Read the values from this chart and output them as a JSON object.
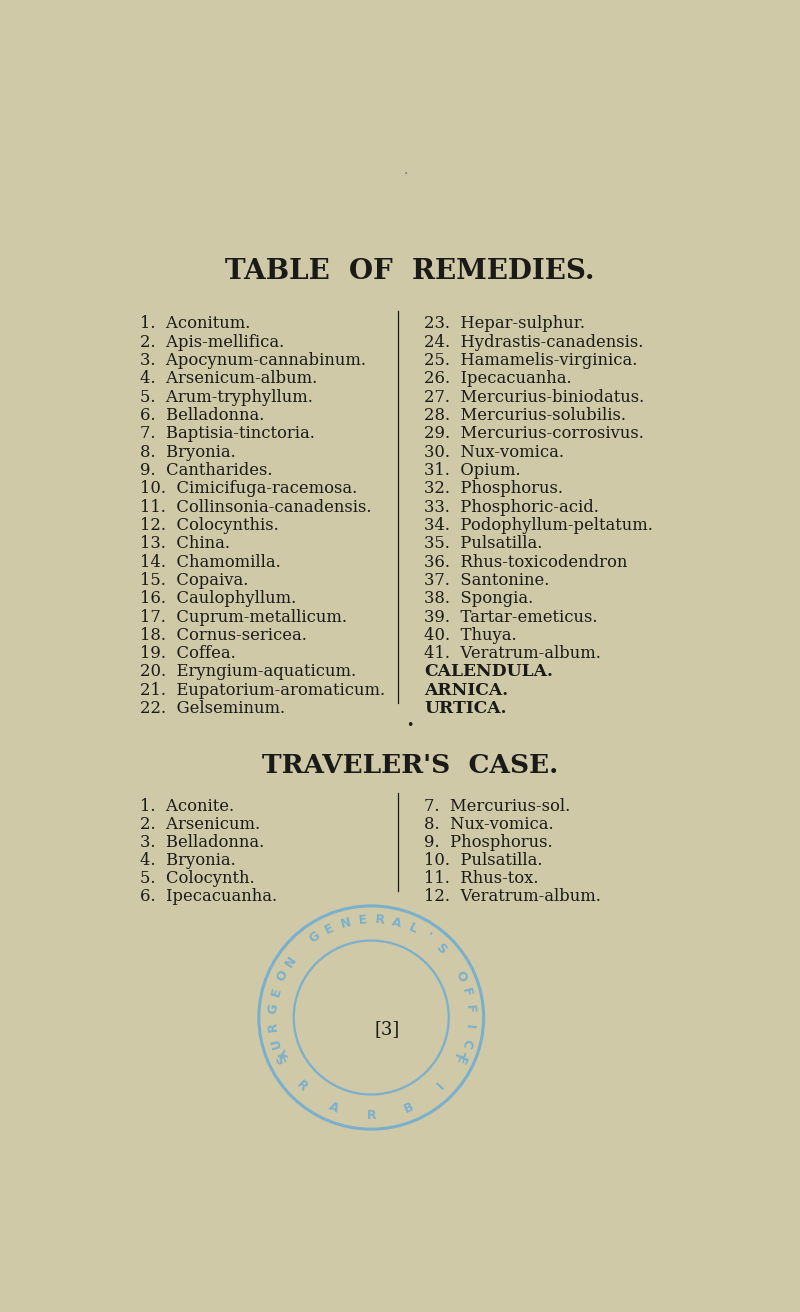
{
  "bg_color": "#cfc9a8",
  "text_color": "#1a1a18",
  "left_col": [
    "1.  Aconitum.",
    "2.  Apis-mellifica.",
    "3.  Apocynum-cannabinum.",
    "4.  Arsenicum-album.",
    "5.  Arum-tryphyllum.",
    "6.  Belladonna.",
    "7.  Baptisia-tinctoria.",
    "8.  Bryonia.",
    "9.  Cantharides.",
    "10.  Cimicifuga-racemosa.",
    "11.  Collinsonia-canadensis.",
    "12.  Colocynthis.",
    "13.  China.",
    "14.  Chamomilla.",
    "15.  Copaiva.",
    "16.  Caulophyllum.",
    "17.  Cuprum-metallicum.",
    "18.  Cornus-sericea.",
    "19.  Coffea.",
    "20.  Eryngium-aquaticum.",
    "21.  Eupatorium-aromaticum.",
    "22.  Gelseminum."
  ],
  "right_col": [
    "23.  Hepar-sulphur.",
    "24.  Hydrastis-canadensis.",
    "25.  Hamamelis-virginica.",
    "26.  Ipecacuanha.",
    "27.  Mercurius-biniodatus.",
    "28.  Mercurius-solubilis.",
    "29.  Mercurius-corrosivus.",
    "30.  Nux-vomica.",
    "31.  Opium.",
    "32.  Phosphorus.",
    "33.  Phosphoric-acid.",
    "34.  Podophyllum-peltatum.",
    "35.  Pulsatilla.",
    "36.  Rhus-toxicodendron",
    "37.  Santonine.",
    "38.  Spongia.",
    "39.  Tartar-emeticus.",
    "40.  Thuya.",
    "41.  Veratrum-album.",
    "CALENDULA.",
    "ARNICA.",
    "URTICA."
  ],
  "tc_left": [
    "1.  Aconite.",
    "2.  Arsenicum.",
    "3.  Belladonna.",
    "4.  Bryonia.",
    "5.  Colocynth.",
    "6.  Ipecacuanha."
  ],
  "tc_right": [
    "7.  Mercurius-sol.",
    "8.  Nux-vomica.",
    "9.  Phosphorus.",
    "10.  Pulsatilla.",
    "11.  Rhus-tox.",
    "12.  Veratrum-album."
  ],
  "stamp_color": "#7ab0cc",
  "body_fontsize": 11.8,
  "tc_fontsize": 11.8,
  "title_fontsize": 20
}
